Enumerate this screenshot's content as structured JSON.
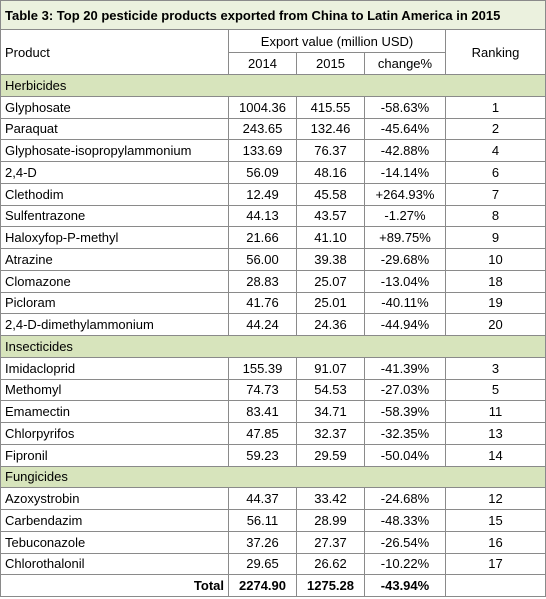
{
  "title": "Table 3: Top 20 pesticide products exported from China to Latin America in 2015",
  "table": {
    "header": {
      "product": "Product",
      "export_value": "Export value (million USD)",
      "subheaders": [
        "2014",
        "2015",
        "change%"
      ],
      "ranking": "Ranking"
    },
    "sections": [
      {
        "name": "Herbicides",
        "rows": [
          [
            "Glyphosate",
            "1004.36",
            "415.55",
            "-58.63%",
            "1"
          ],
          [
            "Paraquat",
            "243.65",
            "132.46",
            "-45.64%",
            "2"
          ],
          [
            "Glyphosate-isopropylammonium",
            "133.69",
            "76.37",
            "-42.88%",
            "4"
          ],
          [
            "2,4-D",
            "56.09",
            "48.16",
            "-14.14%",
            "6"
          ],
          [
            "Clethodim",
            "12.49",
            "45.58",
            "+264.93%",
            "7"
          ],
          [
            "Sulfentrazone",
            "44.13",
            "43.57",
            "-1.27%",
            "8"
          ],
          [
            "Haloxyfop-P-methyl",
            "21.66",
            "41.10",
            "+89.75%",
            "9"
          ],
          [
            "Atrazine",
            "56.00",
            "39.38",
            "-29.68%",
            "10"
          ],
          [
            "Clomazone",
            "28.83",
            "25.07",
            "-13.04%",
            "18"
          ],
          [
            "Picloram",
            "41.76",
            "25.01",
            "-40.11%",
            "19"
          ],
          [
            "2,4-D-dimethylammonium",
            "44.24",
            "24.36",
            "-44.94%",
            "20"
          ]
        ]
      },
      {
        "name": "Insecticides",
        "rows": [
          [
            "Imidacloprid",
            "155.39",
            "91.07",
            "-41.39%",
            "3"
          ],
          [
            "Methomyl",
            "74.73",
            "54.53",
            "-27.03%",
            "5"
          ],
          [
            "Emamectin",
            "83.41",
            "34.71",
            "-58.39%",
            "11"
          ],
          [
            "Chlorpyrifos",
            "47.85",
            "32.37",
            "-32.35%",
            "13"
          ],
          [
            "Fipronil",
            "59.23",
            "29.59",
            "-50.04%",
            "14"
          ]
        ]
      },
      {
        "name": "Fungicides",
        "rows": [
          [
            "Azoxystrobin",
            "44.37",
            "33.42",
            "-24.68%",
            "12"
          ],
          [
            "Carbendazim",
            "56.11",
            "28.99",
            "-48.33%",
            "15"
          ],
          [
            "Tebuconazole",
            "37.26",
            "27.37",
            "-26.54%",
            "16"
          ],
          [
            "Chlorothalonil",
            "29.65",
            "26.62",
            "-10.22%",
            "17"
          ]
        ]
      }
    ],
    "total": {
      "label": "Total",
      "values": [
        "2274.90",
        "1275.28",
        "-43.94%"
      ]
    }
  }
}
